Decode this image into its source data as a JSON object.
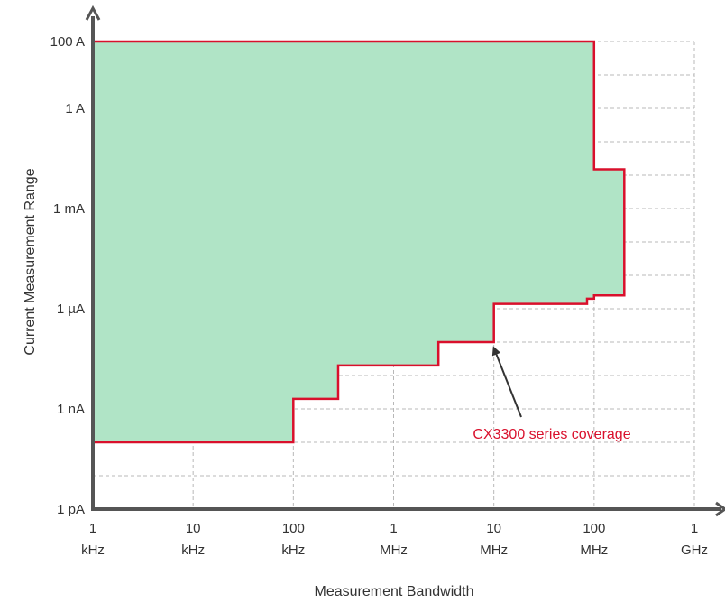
{
  "chart_data": {
    "type": "area",
    "title": "",
    "xlabel": "Measurement Bandwidth",
    "ylabel": "Current Measurement Range",
    "x_scale": "log",
    "y_scale": "log",
    "xlim": [
      1000,
      1000000000
    ],
    "ylim": [
      1e-12,
      100
    ],
    "grid": true,
    "colors": {
      "fill": "#b0e4c6",
      "outline": "#d9102c",
      "axis": "#555555",
      "grid": "#b8b8b8",
      "annotation": "#d9102c"
    },
    "x_ticks": [
      {
        "value": 1000,
        "line1": "1",
        "line2": "kHz"
      },
      {
        "value": 10000,
        "line1": "10",
        "line2": "kHz"
      },
      {
        "value": 100000,
        "line1": "100",
        "line2": "kHz"
      },
      {
        "value": 1000000,
        "line1": "1",
        "line2": "MHz"
      },
      {
        "value": 10000000,
        "line1": "10",
        "line2": "MHz"
      },
      {
        "value": 100000000,
        "line1": "100",
        "line2": "MHz"
      },
      {
        "value": 1000000000,
        "line1": "1",
        "line2": "GHz"
      }
    ],
    "y_ticks": [
      {
        "value": 1e-12,
        "label": "1 pA"
      },
      {
        "value": 1e-09,
        "label": "1 nA"
      },
      {
        "value": 1e-06,
        "label": "1 µA"
      },
      {
        "value": 0.001,
        "label": "1 mA"
      },
      {
        "value": 1,
        "label": "1 A"
      },
      {
        "value": 100,
        "label": "100 A"
      }
    ],
    "y_minor_grid": [
      1e-11,
      1e-10,
      1e-08,
      1e-07,
      1e-05,
      0.0001,
      0.01,
      0.1,
      10
    ],
    "series": [
      {
        "name": "CX3300 series coverage",
        "points": [
          [
            1000,
            1e-10
          ],
          [
            100000,
            1e-10
          ],
          [
            100000,
            2e-09
          ],
          [
            280000,
            2e-09
          ],
          [
            280000,
            2e-08
          ],
          [
            2800000,
            2e-08
          ],
          [
            2800000,
            1e-07
          ],
          [
            10000000,
            1e-07
          ],
          [
            10000000,
            1.4e-06
          ],
          [
            85000000,
            1.4e-06
          ],
          [
            85000000,
            2e-06
          ],
          [
            100000000,
            2e-06
          ],
          [
            100000000,
            2.5e-06
          ],
          [
            200000000,
            2.5e-06
          ],
          [
            200000000,
            0.015
          ],
          [
            100000000,
            0.015
          ],
          [
            100000000,
            100
          ],
          [
            1000,
            100
          ]
        ]
      }
    ],
    "annotation": {
      "text": "CX3300 series coverage",
      "target": [
        10000000,
        1e-07
      ]
    }
  }
}
